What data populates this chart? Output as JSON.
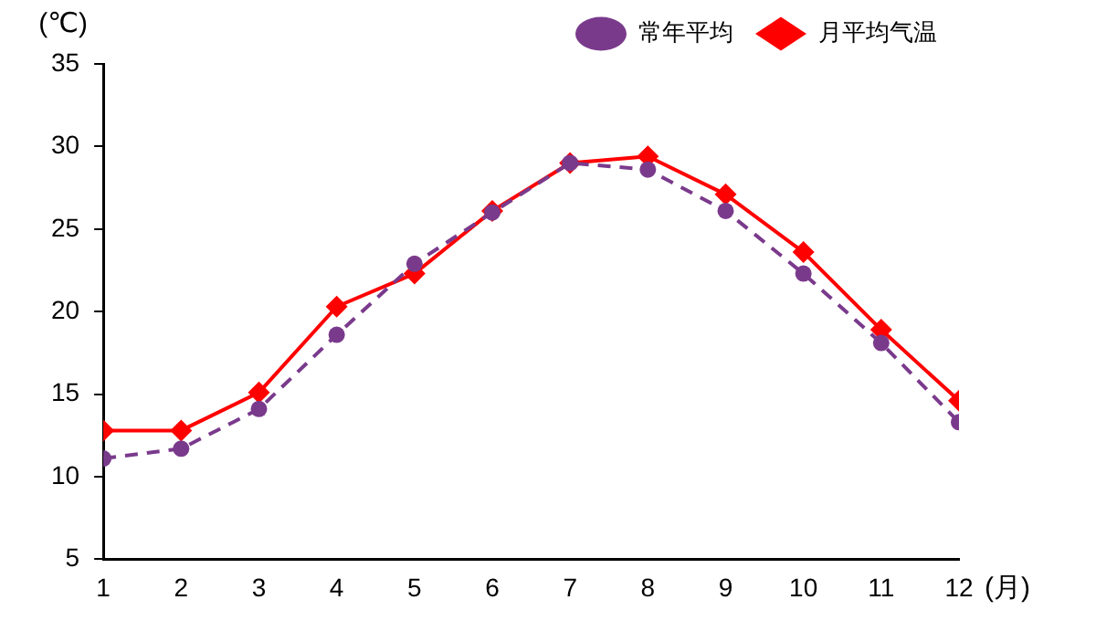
{
  "chart_data": {
    "type": "line",
    "xlabel": "(月)",
    "ylabel": "(℃)",
    "x": [
      1,
      2,
      3,
      4,
      5,
      6,
      7,
      8,
      9,
      10,
      11,
      12
    ],
    "xlim": [
      1,
      12
    ],
    "xticks": [
      1,
      2,
      3,
      4,
      5,
      6,
      7,
      8,
      9,
      10,
      11,
      12
    ],
    "ylim": [
      5,
      35
    ],
    "yticks": [
      5,
      10,
      15,
      20,
      25,
      30,
      35
    ],
    "grid": false,
    "legend": "top right",
    "series": [
      {
        "name": "月平均气温",
        "color": "#ff0000",
        "marker": "diamond",
        "line_style": "solid",
        "values": [
          12.8,
          12.8,
          15.1,
          20.3,
          22.3,
          26.1,
          29,
          29.4,
          27.1,
          23.6,
          18.9,
          14.6
        ]
      },
      {
        "name": "常年平均",
        "color": "#7a3a8c",
        "marker": "circle",
        "line_style": "dashed",
        "values": [
          11.1,
          11.7,
          14.1,
          18.6,
          22.9,
          26,
          29,
          28.6,
          26.1,
          22.3,
          18.1,
          13.3
        ]
      }
    ]
  }
}
